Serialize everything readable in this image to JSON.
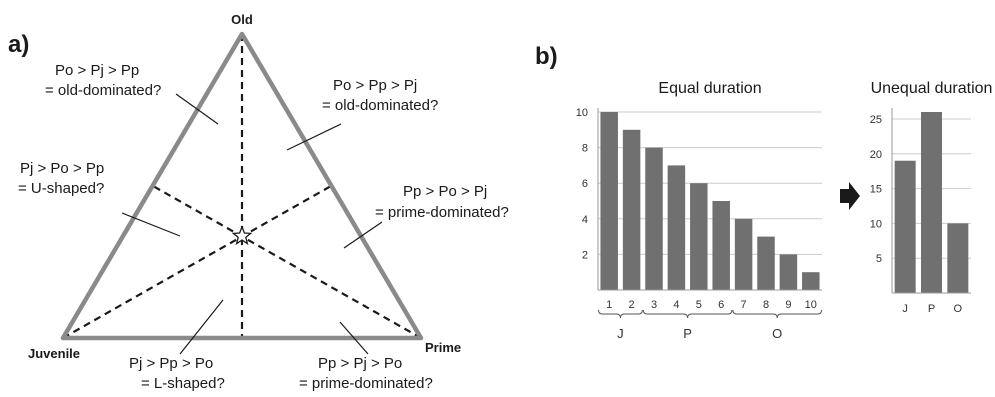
{
  "panel_a": {
    "label": "a)",
    "vertices": {
      "top": "Old",
      "left": "Juvenile",
      "right": "Prime"
    },
    "regions": [
      {
        "lines": [
          "Po > Pj > Pp",
          "= old-dominated?"
        ]
      },
      {
        "lines": [
          "Po > Pp > Pj",
          "= old-dominated?"
        ]
      },
      {
        "lines": [
          "Pj > Po > Pp",
          "= U-shaped?"
        ]
      },
      {
        "lines": [
          "Pp > Po > Pj",
          "= prime-dominated?"
        ]
      },
      {
        "lines": [
          "Pj > Pp > Po",
          "= L-shaped?"
        ]
      },
      {
        "lines": [
          "Pp > Pj > Po",
          "= prime-dominated?"
        ]
      }
    ],
    "center_marker": "star-icon",
    "colors": {
      "triangle": "#8a8a8a",
      "dashed": "#1a1a1a"
    }
  },
  "panel_b": {
    "label": "b)",
    "arrow_icon": "right-arrow-icon",
    "bar_color": "#707070"
  },
  "chart_data": [
    {
      "type": "bar",
      "title": "Equal duration",
      "categories": [
        "1",
        "2",
        "3",
        "4",
        "5",
        "6",
        "7",
        "8",
        "9",
        "10"
      ],
      "values": [
        10,
        9,
        8,
        7,
        6,
        5,
        4,
        3,
        2,
        1
      ],
      "ylim": [
        0,
        10
      ],
      "yticks": [
        "2",
        "4",
        "6",
        "8",
        "10"
      ],
      "groups": [
        {
          "label": "J",
          "categories": [
            "1",
            "2"
          ]
        },
        {
          "label": "P",
          "categories": [
            "3",
            "4",
            "5",
            "6"
          ]
        },
        {
          "label": "O",
          "categories": [
            "7",
            "8",
            "9",
            "10"
          ]
        }
      ],
      "grid": true
    },
    {
      "type": "bar",
      "title": "Unequal duration",
      "categories": [
        "J",
        "P",
        "O"
      ],
      "values": [
        19,
        26,
        10
      ],
      "ylim": [
        0,
        26
      ],
      "yticks": [
        "5",
        "10",
        "15",
        "20",
        "25"
      ],
      "grid": true
    }
  ]
}
